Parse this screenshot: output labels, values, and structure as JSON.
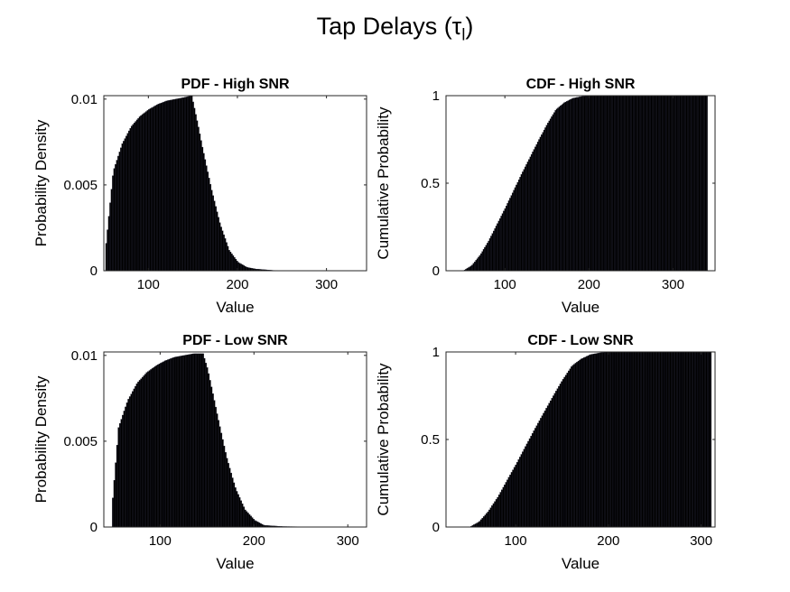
{
  "figure": {
    "title_main": "Tap Delays (τ",
    "title_sub": "l",
    "title_close": ")"
  },
  "chart_data": [
    {
      "type": "bar",
      "title": "PDF - High SNR",
      "xlabel": "Value",
      "ylabel": "Probability Density",
      "xlim": [
        50,
        345
      ],
      "ylim": [
        0,
        0.0102
      ],
      "xticks": [
        100,
        200,
        300
      ],
      "yticks": [
        0,
        0.005,
        0.01
      ],
      "ytick_labels": [
        "0",
        "0.005",
        "0.01"
      ],
      "bin_centers": [
        52,
        60,
        70,
        80,
        90,
        100,
        110,
        120,
        130,
        140,
        148,
        155,
        160,
        170,
        180,
        190,
        200,
        210,
        220,
        240,
        270,
        300,
        340
      ],
      "values": [
        0.0016,
        0.0058,
        0.0074,
        0.0084,
        0.009,
        0.0094,
        0.0097,
        0.0099,
        0.01,
        0.0101,
        0.0102,
        0.0085,
        0.0072,
        0.0048,
        0.0027,
        0.0012,
        0.0005,
        0.0002,
        0.0001,
        2e-05,
        1e-05,
        1e-05,
        1e-05
      ],
      "grid": false
    },
    {
      "type": "bar",
      "title": "CDF - High SNR",
      "xlabel": "Value",
      "ylabel": "Cumulative Probability",
      "xlim": [
        30,
        350
      ],
      "ylim": [
        0,
        1
      ],
      "xticks": [
        100,
        200,
        300
      ],
      "yticks": [
        0,
        0.5,
        1
      ],
      "ytick_labels": [
        "0",
        "0.5",
        "1"
      ],
      "bin_centers": [
        50,
        60,
        70,
        80,
        100,
        120,
        140,
        150,
        160,
        170,
        180,
        190,
        200,
        250,
        300,
        340
      ],
      "values": [
        0.0,
        0.03,
        0.09,
        0.17,
        0.36,
        0.56,
        0.75,
        0.84,
        0.92,
        0.96,
        0.985,
        0.995,
        1.0,
        1.0,
        1.0,
        1.0
      ],
      "grid": false
    },
    {
      "type": "bar",
      "title": "PDF - Low SNR",
      "xlabel": "Value",
      "ylabel": "Probability Density",
      "xlim": [
        40,
        320
      ],
      "ylim": [
        0,
        0.0102
      ],
      "xticks": [
        100,
        200,
        300
      ],
      "yticks": [
        0,
        0.005,
        0.01
      ],
      "ytick_labels": [
        "0",
        "0.005",
        "0.01"
      ],
      "bin_centers": [
        49,
        55,
        65,
        75,
        85,
        95,
        105,
        115,
        125,
        135,
        145,
        150,
        160,
        170,
        180,
        190,
        200,
        210,
        230,
        260,
        310
      ],
      "values": [
        0.0017,
        0.0058,
        0.0074,
        0.0084,
        0.009,
        0.0094,
        0.0097,
        0.0099,
        0.01,
        0.0101,
        0.0101,
        0.0092,
        0.0066,
        0.0041,
        0.0022,
        0.001,
        0.0004,
        0.0001,
        3e-05,
        1e-05,
        1e-05
      ],
      "grid": false
    },
    {
      "type": "bar",
      "title": "CDF - Low SNR",
      "xlabel": "Value",
      "ylabel": "Cumulative Probability",
      "xlim": [
        25,
        315
      ],
      "ylim": [
        0,
        1
      ],
      "xticks": [
        100,
        200,
        300
      ],
      "yticks": [
        0,
        0.5,
        1
      ],
      "ytick_labels": [
        "0",
        "0.5",
        "1"
      ],
      "bin_centers": [
        50,
        60,
        70,
        80,
        100,
        120,
        140,
        150,
        160,
        170,
        180,
        190,
        200,
        250,
        300,
        310
      ],
      "values": [
        0.0,
        0.03,
        0.09,
        0.17,
        0.36,
        0.56,
        0.75,
        0.84,
        0.92,
        0.96,
        0.985,
        0.995,
        1.0,
        1.0,
        1.0,
        1.0
      ],
      "grid": false
    }
  ]
}
